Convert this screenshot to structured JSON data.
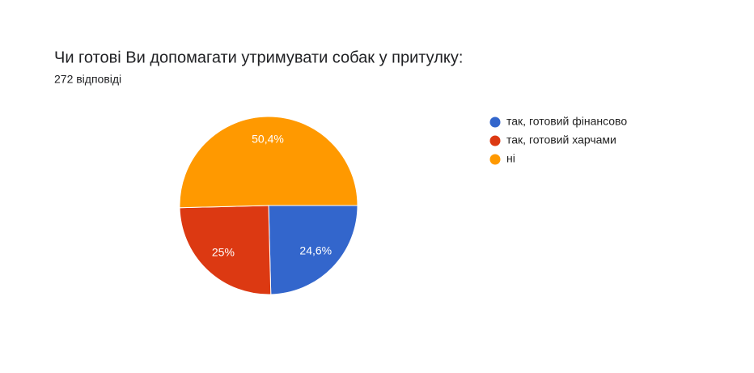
{
  "chart_data": {
    "type": "pie",
    "title": "Чи готові Ви допомагати утримувати собак у притулку:",
    "subtitle": "272 відповіді",
    "categories": [
      "так, готовий фінансово",
      "так, готовий харчами",
      "ні"
    ],
    "values": [
      24.6,
      25,
      50.4
    ],
    "value_labels": [
      "24,6%",
      "25%",
      "50,4%"
    ],
    "colors": [
      "#3366cc",
      "#dc3912",
      "#ff9900"
    ],
    "legend": "right"
  }
}
